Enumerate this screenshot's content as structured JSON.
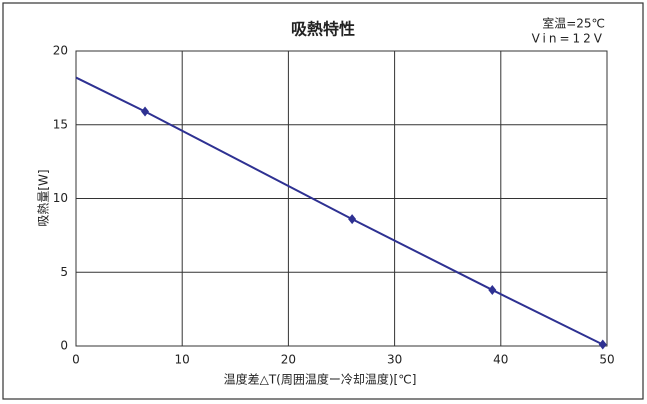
{
  "chart_data": {
    "type": "line",
    "title": "吸熱特性",
    "annotations": [
      "室温=25℃",
      "Vin=12V"
    ],
    "xlabel": "温度差△T(周囲温度ー冷却温度)[℃]",
    "ylabel": "吸熱量[W]",
    "xlim": [
      0,
      50
    ],
    "ylim": [
      0,
      20
    ],
    "xticks": [
      0,
      10,
      20,
      30,
      40,
      50
    ],
    "yticks": [
      0,
      5,
      10,
      15,
      20
    ],
    "grid": true,
    "color": "#2e3192",
    "x": [
      0,
      6.5,
      26,
      39.2,
      49.6
    ],
    "values": [
      18.2,
      15.9,
      8.6,
      3.8,
      0.1
    ],
    "points": {
      "x": [
        6.5,
        26,
        39.2,
        49.6
      ],
      "values": [
        15.9,
        8.6,
        3.8,
        0.1
      ]
    }
  }
}
